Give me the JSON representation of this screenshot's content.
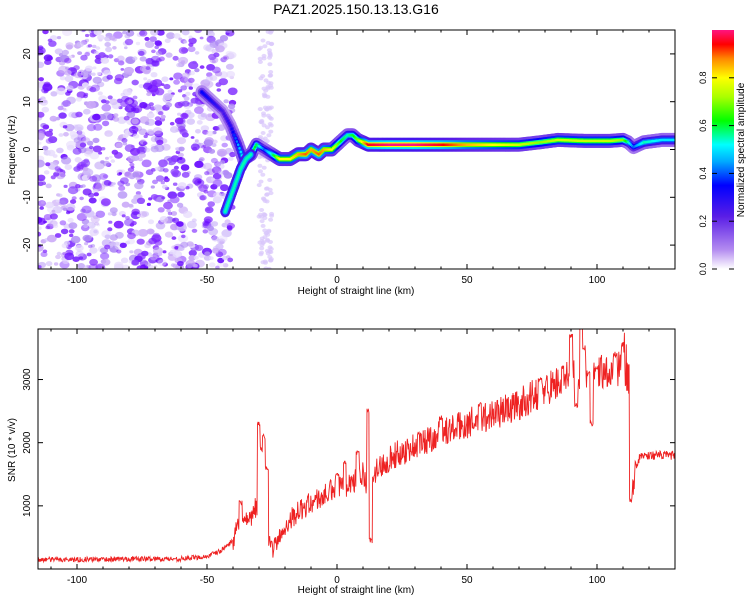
{
  "figure": {
    "title": "PAZ1.2025.150.13.13.G16"
  },
  "chart_data": [
    {
      "type": "heatmap",
      "xlabel": "Height of straight line (km)",
      "ylabel": "Frequency (Hz)",
      "xlim": [
        -115,
        130
      ],
      "ylim": [
        -25,
        25
      ],
      "xticks": [
        -100,
        -50,
        0,
        50,
        100
      ],
      "yticks": [
        -20,
        -10,
        0,
        10,
        20
      ],
      "colorbar": {
        "label": "Normalized spectral amplitude",
        "range": [
          0.0,
          1.0
        ],
        "ticks": [
          "0.0",
          "0.2",
          "0.4",
          "0.6",
          "0.8"
        ],
        "colormap": [
          "#ffffff",
          "#8a2be2",
          "#0000ff",
          "#00ffff",
          "#00ff00",
          "#ffff00",
          "#ff0000",
          "#ff00aa"
        ]
      },
      "ridge": {
        "x": [
          -52,
          -48,
          -44,
          -41,
          -38,
          -36,
          -33,
          -31,
          -28,
          -25,
          -22,
          -18,
          -15,
          -12,
          -10,
          -7,
          -5,
          -2,
          0,
          2,
          4,
          6,
          8,
          12,
          20,
          30,
          40,
          50,
          60,
          70,
          78,
          85,
          95,
          105,
          110,
          112,
          114,
          118,
          125,
          130
        ],
        "y": [
          12,
          10,
          8,
          5,
          1,
          -2,
          -1,
          1,
          0,
          -1,
          -2,
          -2,
          -1,
          -1,
          0,
          -1,
          0,
          0,
          1,
          2,
          3,
          3,
          2,
          1,
          1,
          1,
          1,
          1,
          1,
          1,
          1.5,
          2,
          1.8,
          1.8,
          2,
          1.5,
          0.5,
          1.5,
          2,
          2
        ],
        "amplitude": [
          0.35,
          0.3,
          0.25,
          0.3,
          0.45,
          0.55,
          0.65,
          0.6,
          0.4,
          0.55,
          0.8,
          0.8,
          0.85,
          0.9,
          0.85,
          0.9,
          0.85,
          0.8,
          0.7,
          0.6,
          0.55,
          0.6,
          0.7,
          0.95,
          1.0,
          1.0,
          0.95,
          0.85,
          0.8,
          0.75,
          0.7,
          0.75,
          0.75,
          0.75,
          0.7,
          0.55,
          0.4,
          0.55,
          0.5,
          0.5
        ]
      },
      "branch": {
        "x": [
          -43,
          -41,
          -39,
          -37,
          -35,
          -33
        ],
        "y": [
          -13,
          -10,
          -7,
          -4,
          -2,
          -1
        ]
      }
    },
    {
      "type": "line",
      "xlabel": "Height of straight line (km)",
      "ylabel": "SNR (10 * v/v)",
      "xlim": [
        -115,
        130
      ],
      "ylim": [
        0,
        3800
      ],
      "xticks": [
        -100,
        -50,
        0,
        50,
        100
      ],
      "yticks": [
        1000,
        2000,
        3000
      ],
      "color": "#ee2222",
      "trend": {
        "x": [
          -115,
          -100,
          -80,
          -60,
          -50,
          -45,
          -40,
          -37,
          -34,
          -31,
          -28,
          -25,
          -22,
          -18,
          -15,
          -10,
          -5,
          0,
          5,
          8,
          10,
          12,
          13,
          15,
          20,
          30,
          40,
          50,
          60,
          70,
          80,
          90,
          95,
          100,
          105,
          110,
          112,
          113,
          114,
          115,
          117,
          120,
          125,
          130
        ],
        "y": [
          150,
          150,
          160,
          160,
          200,
          280,
          450,
          800,
          700,
          1000,
          550,
          300,
          500,
          800,
          900,
          1050,
          1150,
          1300,
          1350,
          1450,
          1500,
          1150,
          1450,
          1550,
          1750,
          1950,
          2150,
          2300,
          2450,
          2600,
          2850,
          3050,
          3150,
          3150,
          3150,
          3200,
          3100,
          1600,
          1300,
          1650,
          1800,
          1800,
          1800,
          1800
        ]
      },
      "spikes": {
        "x": [
          -37,
          -30,
          -29,
          -28,
          -27,
          0,
          3,
          8,
          12,
          13,
          40,
          55,
          78,
          90,
          92,
          94,
          95,
          97,
          98,
          100,
          107,
          110,
          112,
          113
        ],
        "y": [
          1050,
          2300,
          1900,
          2100,
          1600,
          1500,
          1700,
          1850,
          2500,
          450,
          2400,
          2600,
          3000,
          3700,
          2600,
          3900,
          3500,
          3100,
          2300,
          3200,
          3400,
          3550,
          3000,
          1100
        ]
      }
    }
  ]
}
